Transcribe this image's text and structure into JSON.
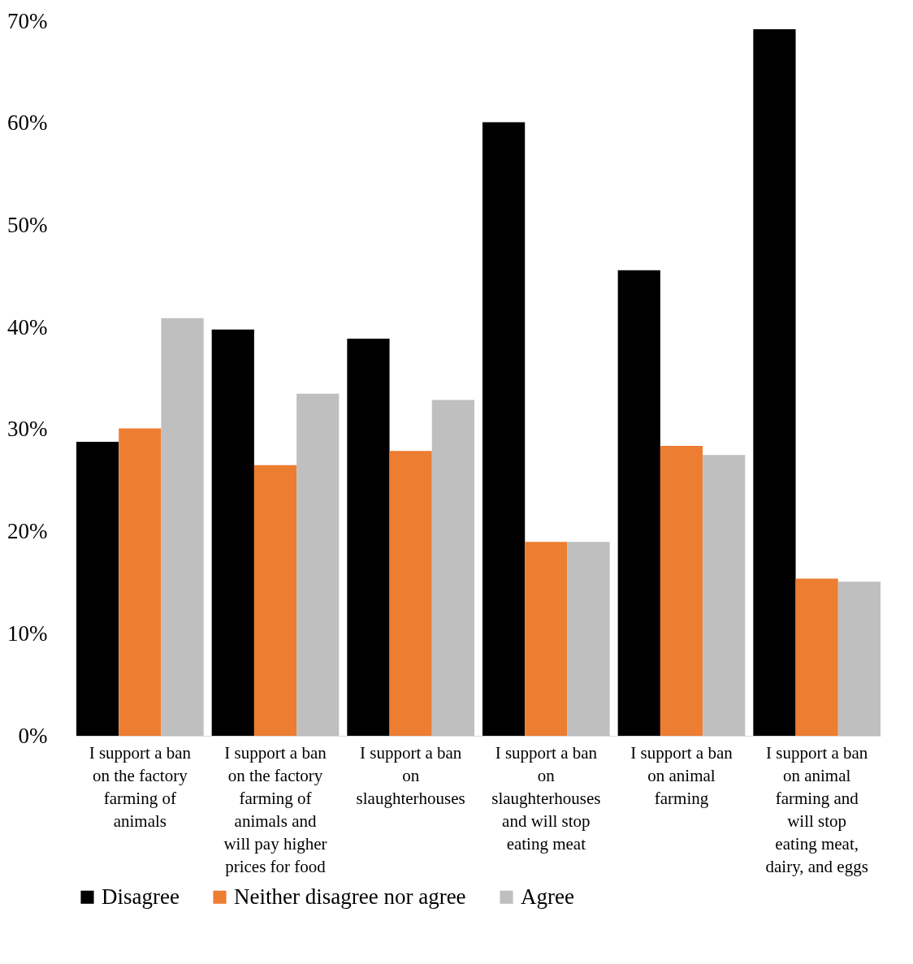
{
  "chart_data": {
    "type": "bar",
    "categories": [
      "I support a ban on the factory farming of animals",
      "I support a ban on the factory farming of animals and will pay higher prices for food",
      "I support a ban on slaughterhouses",
      "I support a ban on slaughterhouses and will stop eating meat",
      "I support a ban on animal farming",
      "I support a ban on animal farming and will stop eating meat, dairy, and eggs"
    ],
    "series": [
      {
        "name": "Disagree",
        "color": "#000000",
        "values": [
          28.8,
          39.8,
          38.9,
          60.1,
          45.6,
          69.2
        ]
      },
      {
        "name": "Neither disagree nor agree",
        "color": "#ed7d31",
        "values": [
          30.1,
          26.5,
          27.9,
          19.0,
          28.4,
          15.4
        ]
      },
      {
        "name": "Agree",
        "color": "#bfbfbf",
        "values": [
          40.9,
          33.5,
          32.9,
          19.0,
          27.5,
          15.1
        ]
      }
    ],
    "ylim": [
      0,
      70
    ],
    "yticks": [
      {
        "value": 0,
        "label": "0%"
      },
      {
        "value": 10,
        "label": "10%"
      },
      {
        "value": 20,
        "label": "20%"
      },
      {
        "value": 30,
        "label": "30%"
      },
      {
        "value": 40,
        "label": "40%"
      },
      {
        "value": 50,
        "label": "50%"
      },
      {
        "value": 60,
        "label": "60%"
      },
      {
        "value": 70,
        "label": "70%"
      }
    ],
    "grid": false,
    "legend": "bottom"
  }
}
